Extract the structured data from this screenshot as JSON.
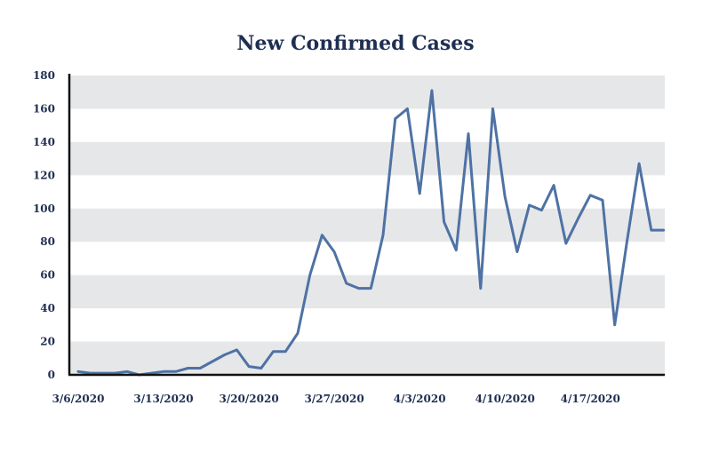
{
  "chart_data": {
    "type": "line",
    "title": "New Confirmed Cases",
    "xlabel": "",
    "ylabel": "",
    "ylim": [
      0,
      180
    ],
    "yticks": [
      "0",
      "20",
      "40",
      "60",
      "80",
      "100",
      "120",
      "140",
      "160",
      "180"
    ],
    "xticks": [
      "3/6/2020",
      "3/13/2020",
      "3/20/2020",
      "3/27/2020",
      "4/3/2020",
      "4/10/2020",
      "4/17/2020"
    ],
    "x": [
      "3/6/2020",
      "3/7/2020",
      "3/8/2020",
      "3/9/2020",
      "3/10/2020",
      "3/11/2020",
      "3/12/2020",
      "3/13/2020",
      "3/14/2020",
      "3/15/2020",
      "3/16/2020",
      "3/17/2020",
      "3/18/2020",
      "3/19/2020",
      "3/20/2020",
      "3/21/2020",
      "3/22/2020",
      "3/23/2020",
      "3/24/2020",
      "3/25/2020",
      "3/26/2020",
      "3/27/2020",
      "3/28/2020",
      "3/29/2020",
      "3/30/2020",
      "3/31/2020",
      "4/1/2020",
      "4/2/2020",
      "4/3/2020",
      "4/4/2020",
      "4/5/2020",
      "4/6/2020",
      "4/7/2020",
      "4/8/2020",
      "4/9/2020",
      "4/10/2020",
      "4/11/2020",
      "4/12/2020",
      "4/13/2020",
      "4/14/2020",
      "4/15/2020",
      "4/16/2020",
      "4/17/2020",
      "4/18/2020",
      "4/19/2020",
      "4/20/2020",
      "4/21/2020",
      "4/22/2020",
      "4/23/2020"
    ],
    "series": [
      {
        "values": [
          2,
          1,
          1,
          1,
          2,
          0,
          1,
          2,
          2,
          4,
          4,
          8,
          12,
          15,
          5,
          4,
          14,
          14,
          25,
          60,
          84,
          74,
          55,
          52,
          52,
          84,
          154,
          160,
          109,
          171,
          92,
          75,
          145,
          52,
          160,
          107,
          74,
          102,
          99,
          114,
          79,
          94,
          108,
          105,
          30,
          80,
          127,
          87,
          87
        ],
        "color": "#4e72a4"
      }
    ],
    "grid": true,
    "legend": "none",
    "colors": {
      "band": "#e6e7e9",
      "axis": "#111111",
      "text": "#1f2f52"
    }
  }
}
